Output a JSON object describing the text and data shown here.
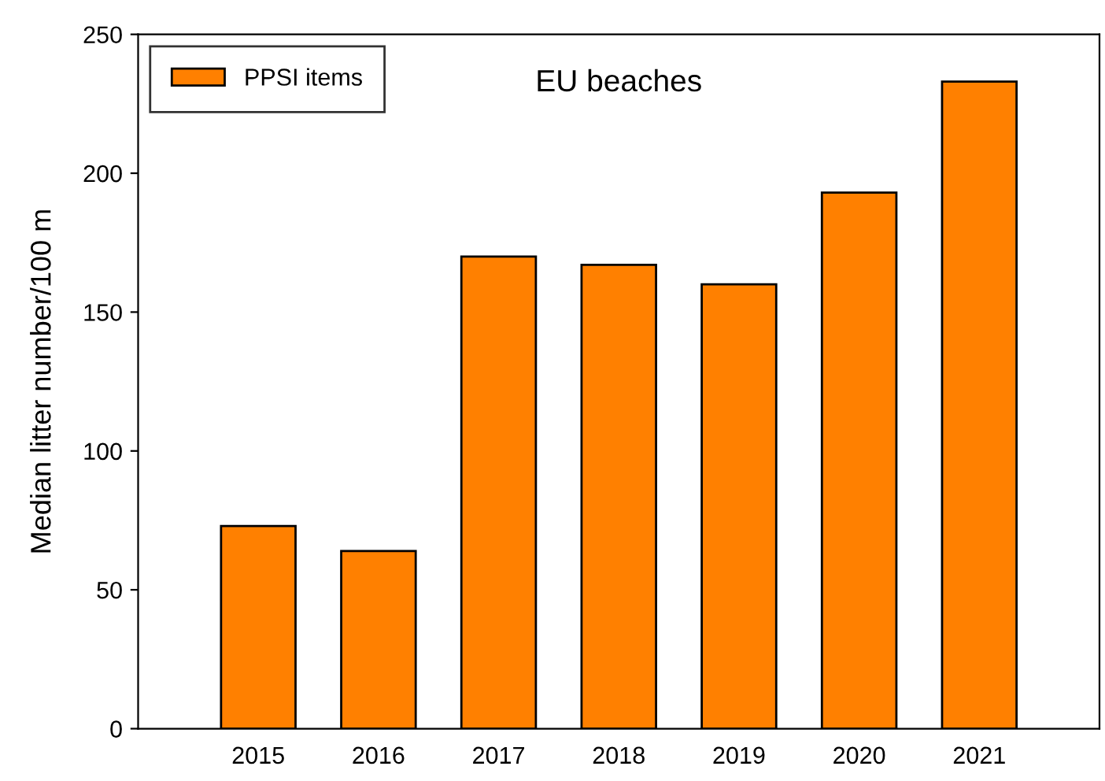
{
  "chart_data": {
    "type": "bar",
    "title": "EU beaches",
    "ylabel": "Median litter number/100 m",
    "categories": [
      "2015",
      "2016",
      "2017",
      "2018",
      "2019",
      "2020",
      "2021"
    ],
    "series": [
      {
        "name": "PPSI items",
        "color": "#ff8000",
        "values": [
          73,
          64,
          170,
          167,
          160,
          193,
          233
        ]
      }
    ],
    "ylim": [
      0,
      250
    ],
    "yticks": [
      0,
      50,
      100,
      150,
      200,
      250
    ],
    "grid": false,
    "legend": "top left"
  }
}
